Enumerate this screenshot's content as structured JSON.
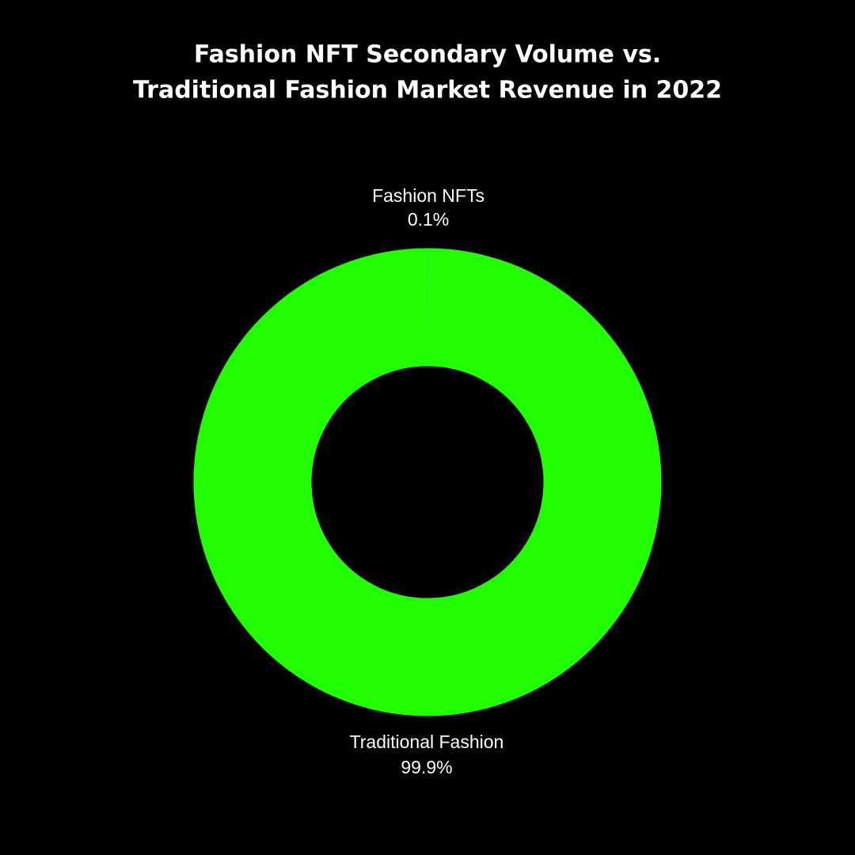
{
  "chart_data": {
    "type": "donut",
    "title": [
      "Fashion NFT Secondary Volume vs.",
      "Traditional Fashion Market Revenue in 2022"
    ],
    "categories": [
      "Fashion NFTs",
      "Traditional Fashion"
    ],
    "values": [
      0.1,
      99.9
    ],
    "value_labels": [
      "0.1%",
      "99.9%"
    ],
    "colors": [
      "#19d6a6",
      "#22ff00"
    ]
  }
}
